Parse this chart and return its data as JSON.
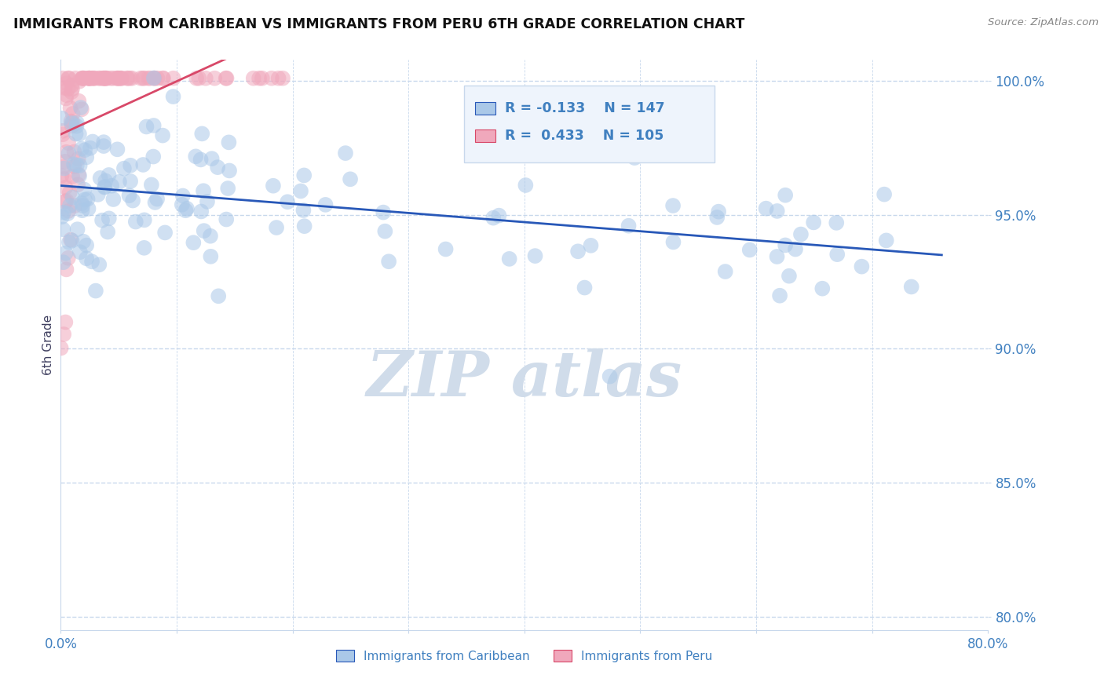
{
  "title": "IMMIGRANTS FROM CARIBBEAN VS IMMIGRANTS FROM PERU 6TH GRADE CORRELATION CHART",
  "source": "Source: ZipAtlas.com",
  "ylabel": "6th Grade",
  "xlim": [
    0.0,
    0.8
  ],
  "ylim": [
    0.795,
    1.008
  ],
  "xticks": [
    0.0,
    0.1,
    0.2,
    0.3,
    0.4,
    0.5,
    0.6,
    0.7,
    0.8
  ],
  "xticklabels": [
    "0.0%",
    "",
    "",
    "",
    "",
    "",
    "",
    "",
    "80.0%"
  ],
  "yticks": [
    0.8,
    0.85,
    0.9,
    0.95,
    1.0
  ],
  "yticklabels": [
    "80.0%",
    "85.0%",
    "90.0%",
    "95.0%",
    "100.0%"
  ],
  "blue_R": -0.133,
  "blue_N": 147,
  "pink_R": 0.433,
  "pink_N": 105,
  "blue_color": "#aac8e8",
  "pink_color": "#f0a8bc",
  "blue_line_color": "#2858b8",
  "pink_line_color": "#d84868",
  "grid_color": "#c8d8ec",
  "text_color": "#4080c0",
  "watermark_color": "#d0dcea",
  "background_color": "#ffffff",
  "title_color": "#111111",
  "legend_box_color": "#eef4fc",
  "legend_border_color": "#c8d8ec",
  "ylabel_color": "#404060"
}
